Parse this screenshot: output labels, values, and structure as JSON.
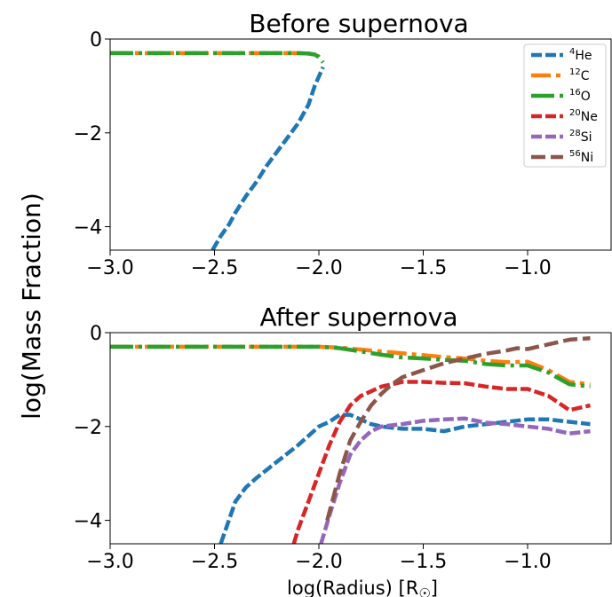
{
  "figure": {
    "ylabel": "log(Mass Fraction)",
    "xlabel": "log(Radius) [R",
    "xlabel_symbol": "☉",
    "xlabel_close": "]"
  },
  "colors": {
    "He": "#1f77b4",
    "C": "#ff7f0e",
    "O": "#2ca02c",
    "Ne": "#d62728",
    "Si": "#9467bd",
    "Ni": "#8c564b"
  },
  "legend_location": "top-right",
  "chart_data": [
    {
      "type": "line",
      "title": "Before supernova",
      "xlim": [
        -3.0,
        -0.6
      ],
      "ylim": [
        -4.5,
        0
      ],
      "xticks": [
        -3.0,
        -2.5,
        -2.0,
        -1.5,
        -1.0
      ],
      "xtick_labels": [
        "−3.0",
        "−2.5",
        "−2.0",
        "−1.5",
        "−1.0"
      ],
      "yticks": [
        0,
        -2,
        -4
      ],
      "ytick_labels": [
        "0",
        "−2",
        "−4"
      ],
      "legend": [
        {
          "sup": "4",
          "el": "He",
          "key": "He"
        },
        {
          "sup": "12",
          "el": "C",
          "key": "C"
        },
        {
          "sup": "16",
          "el": "O",
          "key": "O"
        },
        {
          "sup": "20",
          "el": "Ne",
          "key": "Ne"
        },
        {
          "sup": "28",
          "el": "Si",
          "key": "Si"
        },
        {
          "sup": "56",
          "el": "Ni",
          "key": "Ni"
        }
      ],
      "series": [
        {
          "key": "C",
          "x": [
            -3.0,
            -2.8,
            -2.6,
            -2.4,
            -2.2,
            -2.1,
            -2.05,
            -2.02,
            -2.0
          ],
          "y": [
            -0.3,
            -0.3,
            -0.3,
            -0.3,
            -0.3,
            -0.3,
            -0.31,
            -0.33,
            -0.37
          ]
        },
        {
          "key": "O",
          "x": [
            -3.0,
            -2.8,
            -2.6,
            -2.4,
            -2.2,
            -2.1,
            -2.05,
            -2.02,
            -2.0,
            -1.98
          ],
          "y": [
            -0.3,
            -0.3,
            -0.3,
            -0.3,
            -0.3,
            -0.3,
            -0.31,
            -0.33,
            -0.38,
            -0.5
          ]
        },
        {
          "key": "He",
          "x": [
            -2.51,
            -2.47,
            -2.43,
            -2.4,
            -2.35,
            -2.3,
            -2.25,
            -2.2,
            -2.15,
            -2.1,
            -2.05,
            -2.02,
            -1.98
          ],
          "y": [
            -4.5,
            -4.2,
            -3.95,
            -3.7,
            -3.35,
            -3.05,
            -2.7,
            -2.4,
            -2.1,
            -1.8,
            -1.4,
            -1.0,
            -0.6
          ]
        }
      ]
    },
    {
      "type": "line",
      "title": "After supernova",
      "xlim": [
        -3.0,
        -0.6
      ],
      "ylim": [
        -4.5,
        0
      ],
      "xticks": [
        -3.0,
        -2.5,
        -2.0,
        -1.5,
        -1.0
      ],
      "xtick_labels": [
        "−3.0",
        "−2.5",
        "−2.0",
        "−1.5",
        "−1.0"
      ],
      "yticks": [
        0,
        -2,
        -4
      ],
      "ytick_labels": [
        "0",
        "−2",
        "−4"
      ],
      "series": [
        {
          "key": "C",
          "x": [
            -3.0,
            -2.5,
            -2.0,
            -1.9,
            -1.8,
            -1.7,
            -1.6,
            -1.5,
            -1.4,
            -1.3,
            -1.2,
            -1.1,
            -1.0,
            -0.9,
            -0.8,
            -0.7
          ],
          "y": [
            -0.3,
            -0.3,
            -0.3,
            -0.32,
            -0.36,
            -0.4,
            -0.44,
            -0.48,
            -0.52,
            -0.55,
            -0.6,
            -0.63,
            -0.62,
            -0.8,
            -1.05,
            -1.1
          ]
        },
        {
          "key": "O",
          "x": [
            -3.0,
            -2.5,
            -2.0,
            -1.9,
            -1.8,
            -1.7,
            -1.6,
            -1.5,
            -1.4,
            -1.3,
            -1.2,
            -1.1,
            -1.0,
            -0.9,
            -0.8,
            -0.7
          ],
          "y": [
            -0.3,
            -0.3,
            -0.3,
            -0.33,
            -0.4,
            -0.47,
            -0.53,
            -0.55,
            -0.58,
            -0.6,
            -0.67,
            -0.7,
            -0.7,
            -0.85,
            -1.1,
            -1.15
          ]
        },
        {
          "key": "He",
          "x": [
            -2.47,
            -2.4,
            -2.35,
            -2.3,
            -2.2,
            -2.1,
            -2.0,
            -1.95,
            -1.9,
            -1.85,
            -1.8,
            -1.75,
            -1.7,
            -1.6,
            -1.5,
            -1.4,
            -1.3,
            -1.2,
            -1.1,
            -1.0,
            -0.9,
            -0.8,
            -0.7
          ],
          "y": [
            -4.5,
            -3.6,
            -3.3,
            -3.1,
            -2.75,
            -2.4,
            -2.0,
            -1.9,
            -1.75,
            -1.75,
            -1.85,
            -1.95,
            -2.0,
            -2.05,
            -2.05,
            -2.1,
            -2.0,
            -1.95,
            -1.9,
            -1.85,
            -1.85,
            -1.9,
            -1.95
          ]
        },
        {
          "key": "Ne",
          "x": [
            -2.12,
            -2.1,
            -2.05,
            -2.0,
            -1.95,
            -1.9,
            -1.85,
            -1.8,
            -1.7,
            -1.6,
            -1.5,
            -1.4,
            -1.3,
            -1.2,
            -1.1,
            -1.0,
            -0.9,
            -0.8,
            -0.7
          ],
          "y": [
            -4.5,
            -4.2,
            -3.6,
            -3.0,
            -2.4,
            -1.9,
            -1.55,
            -1.35,
            -1.15,
            -1.05,
            -1.05,
            -1.07,
            -1.08,
            -1.15,
            -1.2,
            -1.2,
            -1.35,
            -1.65,
            -1.55
          ]
        },
        {
          "key": "Si",
          "x": [
            -1.99,
            -1.95,
            -1.9,
            -1.85,
            -1.8,
            -1.75,
            -1.7,
            -1.6,
            -1.5,
            -1.4,
            -1.3,
            -1.2,
            -1.1,
            -1.0,
            -0.9,
            -0.8,
            -0.7
          ],
          "y": [
            -4.5,
            -3.9,
            -3.2,
            -2.6,
            -2.3,
            -2.1,
            -2.0,
            -1.95,
            -1.88,
            -1.85,
            -1.83,
            -1.92,
            -1.95,
            -2.0,
            -2.05,
            -2.15,
            -2.1
          ]
        },
        {
          "key": "Ni",
          "x": [
            -1.96,
            -1.9,
            -1.85,
            -1.8,
            -1.75,
            -1.7,
            -1.65,
            -1.6,
            -1.5,
            -1.4,
            -1.3,
            -1.2,
            -1.1,
            -1.05,
            -1.0,
            -0.9,
            -0.8,
            -0.7
          ],
          "y": [
            -4.0,
            -3.0,
            -2.3,
            -1.9,
            -1.55,
            -1.3,
            -1.1,
            -0.95,
            -0.8,
            -0.65,
            -0.55,
            -0.45,
            -0.38,
            -0.33,
            -0.35,
            -0.25,
            -0.15,
            -0.12
          ]
        }
      ]
    }
  ]
}
